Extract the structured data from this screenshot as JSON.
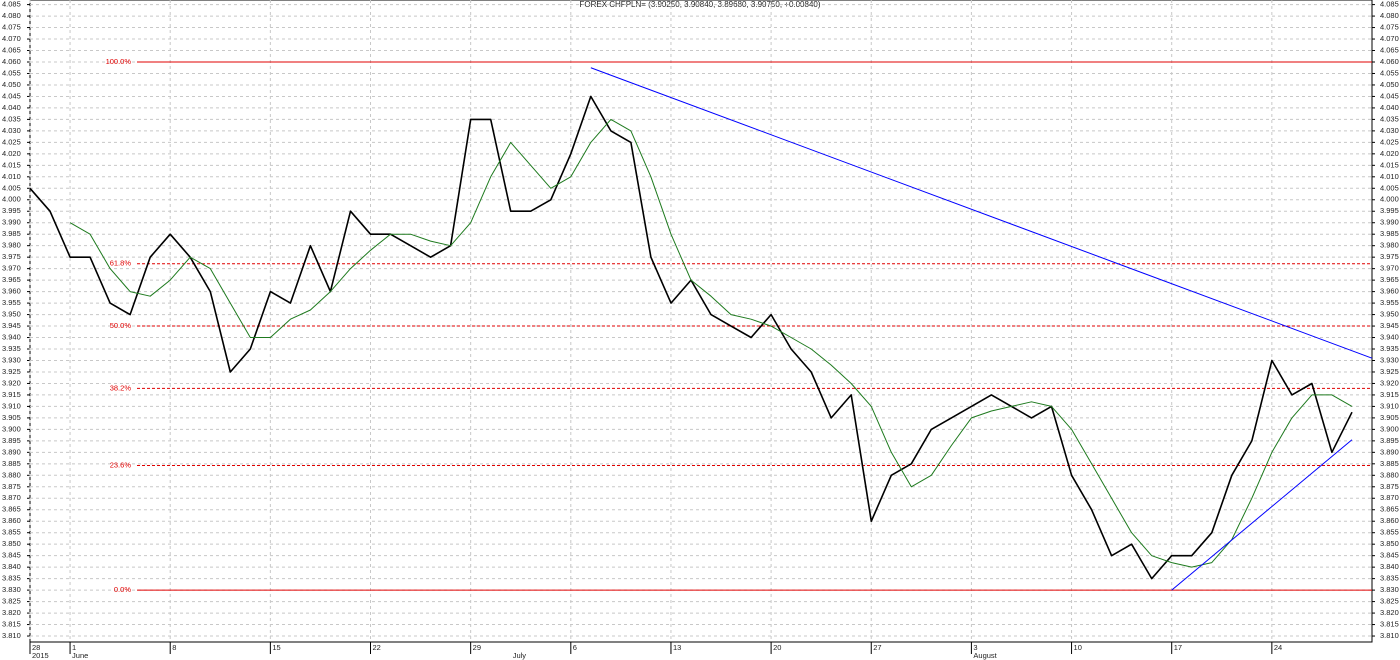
{
  "chart_data": {
    "type": "line",
    "title": "FOREX CHFPLN= (3.90250, 3.90840, 3.89680, 3.90750, +0.00840)",
    "x": [
      "2015-05-28",
      "2015-05-29",
      "2015-06-01",
      "2015-06-02",
      "2015-06-03",
      "2015-06-04",
      "2015-06-05",
      "2015-06-08",
      "2015-06-09",
      "2015-06-10",
      "2015-06-11",
      "2015-06-12",
      "2015-06-15",
      "2015-06-16",
      "2015-06-17",
      "2015-06-18",
      "2015-06-19",
      "2015-06-22",
      "2015-06-23",
      "2015-06-24",
      "2015-06-25",
      "2015-06-26",
      "2015-06-29",
      "2015-06-30",
      "2015-07-01",
      "2015-07-02",
      "2015-07-03",
      "2015-07-06",
      "2015-07-07",
      "2015-07-08",
      "2015-07-09",
      "2015-07-10",
      "2015-07-13",
      "2015-07-14",
      "2015-07-15",
      "2015-07-16",
      "2015-07-17",
      "2015-07-20",
      "2015-07-21",
      "2015-07-22",
      "2015-07-23",
      "2015-07-24",
      "2015-07-27",
      "2015-07-28",
      "2015-07-29",
      "2015-07-30",
      "2015-07-31",
      "2015-08-03",
      "2015-08-04",
      "2015-08-05",
      "2015-08-06",
      "2015-08-07",
      "2015-08-10",
      "2015-08-11",
      "2015-08-12",
      "2015-08-13",
      "2015-08-14",
      "2015-08-17",
      "2015-08-18",
      "2015-08-19",
      "2015-08-20",
      "2015-08-21",
      "2015-08-24",
      "2015-08-25",
      "2015-08-26",
      "2015-08-27",
      "2015-08-28"
    ],
    "series": [
      {
        "name": "CHFPLN=",
        "color": "#000000",
        "values": [
          4.005,
          3.995,
          3.975,
          3.975,
          3.955,
          3.95,
          3.975,
          3.985,
          3.975,
          3.96,
          3.925,
          3.935,
          3.96,
          3.955,
          3.98,
          3.96,
          3.995,
          3.985,
          3.985,
          3.98,
          3.975,
          3.98,
          4.035,
          4.035,
          3.995,
          3.995,
          4.0,
          4.02,
          4.045,
          4.03,
          4.025,
          3.975,
          3.955,
          3.965,
          3.95,
          3.945,
          3.94,
          3.95,
          3.935,
          3.925,
          3.905,
          3.915,
          3.86,
          3.88,
          3.885,
          3.9,
          3.905,
          3.91,
          3.915,
          3.91,
          3.905,
          3.91,
          3.88,
          3.865,
          3.845,
          3.85,
          3.835,
          3.845,
          3.845,
          3.855,
          3.88,
          3.895,
          3.93,
          3.915,
          3.92,
          3.89,
          3.9075
        ]
      },
      {
        "name": "MA",
        "color": "#1e7a1e",
        "values": [
          null,
          null,
          3.99,
          3.985,
          3.97,
          3.96,
          3.958,
          3.965,
          3.975,
          3.97,
          3.955,
          3.94,
          3.94,
          3.948,
          3.952,
          3.96,
          3.97,
          3.978,
          3.985,
          3.985,
          3.982,
          3.98,
          3.99,
          4.01,
          4.025,
          4.015,
          4.005,
          4.01,
          4.025,
          4.035,
          4.03,
          4.01,
          3.985,
          3.965,
          3.958,
          3.95,
          3.948,
          3.945,
          3.94,
          3.935,
          3.928,
          3.92,
          3.91,
          3.89,
          3.875,
          3.88,
          3.893,
          3.905,
          3.908,
          3.91,
          3.912,
          3.91,
          3.9,
          3.885,
          3.87,
          3.855,
          3.845,
          3.842,
          3.84,
          3.842,
          3.852,
          3.87,
          3.89,
          3.905,
          3.915,
          3.915,
          3.91
        ]
      }
    ],
    "xlim": [
      "2015-05-28",
      "2015-08-31"
    ],
    "xticks": [
      {
        "value": "2015-05-28",
        "label": "28"
      },
      {
        "value": "2015-06-01",
        "label": "1"
      },
      {
        "value": "2015-06-08",
        "label": "8"
      },
      {
        "value": "2015-06-15",
        "label": "15"
      },
      {
        "value": "2015-06-22",
        "label": "22"
      },
      {
        "value": "2015-06-29",
        "label": "29"
      },
      {
        "value": "2015-07-06",
        "label": "6"
      },
      {
        "value": "2015-07-13",
        "label": "13"
      },
      {
        "value": "2015-07-20",
        "label": "20"
      },
      {
        "value": "2015-07-27",
        "label": "27"
      },
      {
        "value": "2015-08-03",
        "label": "3"
      },
      {
        "value": "2015-08-10",
        "label": "10"
      },
      {
        "value": "2015-08-17",
        "label": "17"
      },
      {
        "value": "2015-08-24",
        "label": "24"
      }
    ],
    "x_period_labels": [
      {
        "value": "2015-05-28",
        "label": "2015"
      },
      {
        "value": "2015-06-01",
        "label": "June"
      },
      {
        "value": "2015-07-01",
        "label": "July"
      },
      {
        "value": "2015-08-03",
        "label": "August"
      }
    ],
    "ylim": [
      3.8074,
      4.087
    ],
    "yticks": [
      4.085,
      {
        "value": 4.08,
        "label": "4.080"
      },
      4.075,
      {
        "value": 4.07,
        "label": "4.070"
      },
      4.065,
      {
        "value": 4.06,
        "label": "4.060"
      },
      4.055,
      {
        "value": 4.05,
        "label": "4.050"
      },
      4.045,
      {
        "value": 4.04,
        "label": "4.040"
      },
      4.035,
      {
        "value": 4.03,
        "label": "4.030"
      },
      4.025,
      {
        "value": 4.02,
        "label": "4.020"
      },
      4.015,
      {
        "value": 4.01,
        "label": "4.010"
      },
      4.005,
      {
        "value": 4.0,
        "label": "4.000"
      },
      3.995,
      {
        "value": 3.99,
        "label": "3.990"
      },
      3.985,
      {
        "value": 3.98,
        "label": "3.980"
      },
      3.975,
      {
        "value": 3.97,
        "label": "3.970"
      },
      3.965,
      {
        "value": 3.96,
        "label": "3.960"
      },
      3.955,
      {
        "value": 3.95,
        "label": "3.950"
      },
      3.945,
      {
        "value": 3.94,
        "label": "3.940"
      },
      3.935,
      {
        "value": 3.93,
        "label": "3.930"
      },
      3.925,
      {
        "value": 3.92,
        "label": "3.920"
      },
      3.915,
      {
        "value": 3.91,
        "label": "3.910"
      },
      3.905,
      {
        "value": 3.9,
        "label": "3.900"
      },
      3.895,
      {
        "value": 3.89,
        "label": "3.890"
      },
      3.885,
      {
        "value": 3.88,
        "label": "3.880"
      },
      3.875,
      {
        "value": 3.87,
        "label": "3.870"
      },
      3.865,
      {
        "value": 3.86,
        "label": "3.860"
      },
      3.855,
      {
        "value": 3.85,
        "label": "3.850"
      },
      3.845,
      {
        "value": 3.84,
        "label": "3.840"
      },
      3.835,
      {
        "value": 3.83,
        "label": "3.830"
      },
      3.825,
      {
        "value": 3.82,
        "label": "3.820"
      },
      3.815,
      {
        "value": 3.81,
        "label": "3.810"
      }
    ],
    "grid": true,
    "fib_color": "#e00000",
    "fib_levels": [
      {
        "label": "100.0%",
        "value": 4.06
      },
      {
        "label": "61.8%",
        "value": 3.97214
      },
      {
        "label": "50.0%",
        "value": 3.945
      },
      {
        "label": "38.2%",
        "value": 3.91786
      },
      {
        "label": "23.6%",
        "value": 3.88428
      },
      {
        "label": "0.0%",
        "value": 3.83
      }
    ],
    "trendlines": [
      {
        "color": "#0000ff",
        "x": [
          "2015-07-07",
          "2015-08-31"
        ],
        "y": [
          4.0575,
          3.931
        ]
      },
      {
        "color": "#0000ff",
        "x": [
          "2015-08-17",
          "2015-08-28"
        ],
        "y": [
          3.83,
          3.8955
        ]
      }
    ]
  }
}
